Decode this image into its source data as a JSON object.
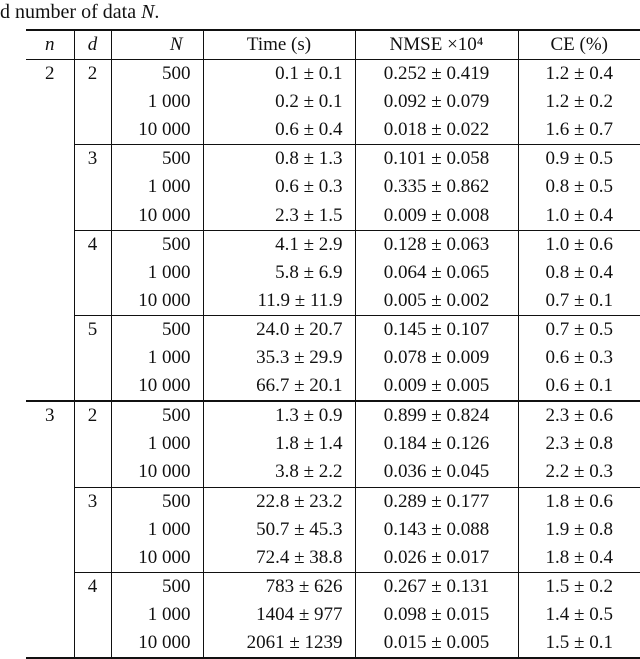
{
  "caption": {
    "prefix": "d number of data ",
    "math": "N",
    "suffix": "."
  },
  "table": {
    "columns": [
      "n",
      "d",
      "N",
      "Time (s)",
      "NMSE ×10⁴",
      "CE (%)"
    ],
    "rows": [
      {
        "n": "2",
        "d": "2",
        "N": "500",
        "time": "0.1 ± 0.1",
        "nmse": "0.252 ± 0.419",
        "ce": "1.2 ± 0.4",
        "rule": "none"
      },
      {
        "n": "",
        "d": "",
        "N": "1 000",
        "time": "0.2 ± 0.1",
        "nmse": "0.092 ± 0.079",
        "ce": "1.2 ± 0.2",
        "rule": "none"
      },
      {
        "n": "",
        "d": "",
        "N": "10 000",
        "time": "0.6 ± 0.4",
        "nmse": "0.018 ± 0.022",
        "ce": "1.6 ± 0.7",
        "rule": "none"
      },
      {
        "n": "",
        "d": "3",
        "N": "500",
        "time": "0.8 ± 1.3",
        "nmse": "0.101 ± 0.058",
        "ce": "0.9 ± 0.5",
        "rule": "cline"
      },
      {
        "n": "",
        "d": "",
        "N": "1 000",
        "time": "0.6 ± 0.3",
        "nmse": "0.335 ± 0.862",
        "ce": "0.8 ± 0.5",
        "rule": "none"
      },
      {
        "n": "",
        "d": "",
        "N": "10 000",
        "time": "2.3 ± 1.5",
        "nmse": "0.009 ± 0.008",
        "ce": "1.0 ± 0.4",
        "rule": "none"
      },
      {
        "n": "",
        "d": "4",
        "N": "500",
        "time": "4.1 ± 2.9",
        "nmse": "0.128 ± 0.063",
        "ce": "1.0 ± 0.6",
        "rule": "cline"
      },
      {
        "n": "",
        "d": "",
        "N": "1 000",
        "time": "5.8 ± 6.9",
        "nmse": "0.064 ± 0.065",
        "ce": "0.8 ± 0.4",
        "rule": "none"
      },
      {
        "n": "",
        "d": "",
        "N": "10 000",
        "time": "11.9 ± 11.9",
        "nmse": "0.005 ± 0.002",
        "ce": "0.7 ± 0.1",
        "rule": "none"
      },
      {
        "n": "",
        "d": "5",
        "N": "500",
        "time": "24.0 ± 20.7",
        "nmse": "0.145 ± 0.107",
        "ce": "0.7 ± 0.5",
        "rule": "cline"
      },
      {
        "n": "",
        "d": "",
        "N": "1 000",
        "time": "35.3 ± 29.9",
        "nmse": "0.078 ± 0.009",
        "ce": "0.6 ± 0.3",
        "rule": "none"
      },
      {
        "n": "",
        "d": "",
        "N": "10 000",
        "time": "66.7 ± 20.1",
        "nmse": "0.009 ± 0.005",
        "ce": "0.6 ± 0.1",
        "rule": "none"
      },
      {
        "n": "3",
        "d": "2",
        "N": "500",
        "time": "1.3 ± 0.9",
        "nmse": "0.899 ± 0.824",
        "ce": "2.3 ± 0.6",
        "rule": "full"
      },
      {
        "n": "",
        "d": "",
        "N": "1 000",
        "time": "1.8 ± 1.4",
        "nmse": "0.184 ± 0.126",
        "ce": "2.3 ± 0.8",
        "rule": "none"
      },
      {
        "n": "",
        "d": "",
        "N": "10 000",
        "time": "3.8 ± 2.2",
        "nmse": "0.036 ± 0.045",
        "ce": "2.2 ± 0.3",
        "rule": "none"
      },
      {
        "n": "",
        "d": "3",
        "N": "500",
        "time": "22.8 ± 23.2",
        "nmse": "0.289 ± 0.177",
        "ce": "1.8 ± 0.6",
        "rule": "cline"
      },
      {
        "n": "",
        "d": "",
        "N": "1 000",
        "time": "50.7 ± 45.3",
        "nmse": "0.143 ± 0.088",
        "ce": "1.9 ± 0.8",
        "rule": "none"
      },
      {
        "n": "",
        "d": "",
        "N": "10 000",
        "time": "72.4 ± 38.8",
        "nmse": "0.026 ± 0.017",
        "ce": "1.8 ± 0.4",
        "rule": "none"
      },
      {
        "n": "",
        "d": "4",
        "N": "500",
        "time": "783 ± 626",
        "nmse": "0.267 ± 0.131",
        "ce": "1.5 ± 0.2",
        "rule": "cline"
      },
      {
        "n": "",
        "d": "",
        "N": "1 000",
        "time": "1404 ± 977",
        "nmse": "0.098 ± 0.015",
        "ce": "1.4 ± 0.5",
        "rule": "none"
      },
      {
        "n": "",
        "d": "",
        "N": "10 000",
        "time": "2061 ± 1239",
        "nmse": "0.015 ± 0.005",
        "ce": "1.5 ± 0.1",
        "rule": "none"
      }
    ]
  }
}
